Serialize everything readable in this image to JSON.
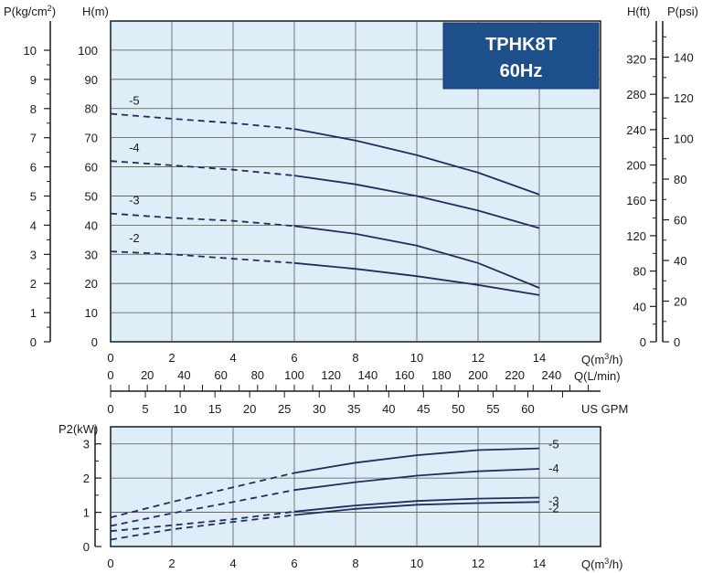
{
  "chart_data": [
    {
      "type": "line",
      "title": "TPHK8T 60Hz",
      "title_line1": "TPHK8T",
      "title_line2": "60Hz",
      "xlabel": "Q(m3/h)",
      "x_unit_1": "Q(m",
      "x_unit_sup": "3",
      "x_unit_2": "/h)",
      "ylabel": "H(m)",
      "ylabel_left": "P(kg/cm",
      "ylabel_left_sup": "2",
      "ylabel_left_end": ")",
      "ylabel_right_ft": "H(ft)",
      "ylabel_right_psi": "P(psi)",
      "xlim": [
        0,
        16
      ],
      "ylim": [
        0,
        110
      ],
      "x_ticks": [
        "0",
        "2",
        "4",
        "6",
        "8",
        "10",
        "12",
        "14"
      ],
      "y_ticks": [
        "10",
        "20",
        "30",
        "40",
        "50",
        "60",
        "70",
        "80",
        "90",
        "100"
      ],
      "p_kg_ticks": [
        "0",
        "1",
        "2",
        "3",
        "4",
        "5",
        "6",
        "7",
        "8",
        "9",
        "10"
      ],
      "hft_ticks": [
        "0",
        "40",
        "80",
        "120",
        "160",
        "200",
        "240",
        "280",
        "320"
      ],
      "psi_ticks": [
        "0",
        "20",
        "40",
        "60",
        "80",
        "100",
        "120",
        "140"
      ],
      "lmin_label": "Q(L/min)",
      "lmin_ticks": [
        "0",
        "20",
        "40",
        "60",
        "80",
        "100",
        "120",
        "140",
        "160",
        "180",
        "200",
        "220",
        "240"
      ],
      "gpm_label": "US GPM",
      "gpm_ticks": [
        "0",
        "5",
        "10",
        "15",
        "20",
        "25",
        "30",
        "35",
        "40",
        "45",
        "50",
        "55",
        "60"
      ],
      "series": [
        {
          "name": "-5",
          "dashed_x": [
            0,
            2,
            4,
            6
          ],
          "dashed_y": [
            78.2,
            76.5,
            75,
            73
          ],
          "solid_x": [
            6,
            8,
            10,
            12,
            14
          ],
          "solid_y": [
            73,
            69,
            64,
            58,
            50.5
          ]
        },
        {
          "name": "-4",
          "dashed_x": [
            0,
            2,
            4,
            6
          ],
          "dashed_y": [
            62,
            60.5,
            59,
            57
          ],
          "solid_x": [
            6,
            8,
            10,
            12,
            14
          ],
          "solid_y": [
            57,
            54,
            50,
            45,
            39
          ]
        },
        {
          "name": "-3",
          "dashed_x": [
            0,
            2,
            4,
            6
          ],
          "dashed_y": [
            44,
            42.5,
            41.5,
            39.7
          ],
          "solid_x": [
            6,
            8,
            10,
            12,
            14
          ],
          "solid_y": [
            39.7,
            37,
            33,
            27,
            18.5
          ]
        },
        {
          "name": "-2",
          "dashed_x": [
            0,
            2,
            4,
            6
          ],
          "dashed_y": [
            31,
            30,
            28.5,
            27
          ],
          "solid_x": [
            6,
            8,
            10,
            12,
            14
          ],
          "solid_y": [
            27,
            25,
            22.5,
            19.5,
            16
          ]
        }
      ],
      "colors": {
        "curve": "#1f2f5c",
        "plot_bg": "#deeef9",
        "title_bg": "#1d4f8b",
        "title_border": "#1a3a66",
        "grid": "#555555"
      }
    },
    {
      "type": "line",
      "xlabel": "Q(m3/h)",
      "x_unit_1": "Q(m",
      "x_unit_sup": "3",
      "x_unit_2": "/h)",
      "ylabel": "P2(kW)",
      "xlim": [
        0,
        16
      ],
      "ylim": [
        0,
        3.5
      ],
      "x_ticks": [
        "0",
        "2",
        "4",
        "6",
        "8",
        "10",
        "12",
        "14"
      ],
      "y_ticks": [
        "0",
        "1",
        "2",
        "3"
      ],
      "series": [
        {
          "name": "-5",
          "dashed_x": [
            0,
            2,
            4,
            6
          ],
          "dashed_y": [
            0.85,
            1.3,
            1.73,
            2.15
          ],
          "solid_x": [
            6,
            8,
            10,
            12,
            14
          ],
          "solid_y": [
            2.15,
            2.45,
            2.67,
            2.82,
            2.87
          ]
        },
        {
          "name": "-4",
          "dashed_x": [
            0,
            2,
            4,
            6
          ],
          "dashed_y": [
            0.6,
            0.97,
            1.3,
            1.65
          ],
          "solid_x": [
            6,
            8,
            10,
            12,
            14
          ],
          "solid_y": [
            1.65,
            1.88,
            2.07,
            2.2,
            2.27
          ]
        },
        {
          "name": "-3",
          "dashed_x": [
            0,
            2,
            4,
            6
          ],
          "dashed_y": [
            0.45,
            0.62,
            0.8,
            1.02
          ],
          "solid_x": [
            6,
            8,
            10,
            12,
            14
          ],
          "solid_y": [
            1.02,
            1.2,
            1.33,
            1.4,
            1.43
          ]
        },
        {
          "name": "-2",
          "dashed_x": [
            0,
            2,
            4,
            6
          ],
          "dashed_y": [
            0.2,
            0.5,
            0.72,
            0.92
          ],
          "solid_x": [
            6,
            8,
            10,
            12,
            14
          ],
          "solid_y": [
            0.92,
            1.1,
            1.22,
            1.27,
            1.3
          ]
        }
      ]
    }
  ]
}
